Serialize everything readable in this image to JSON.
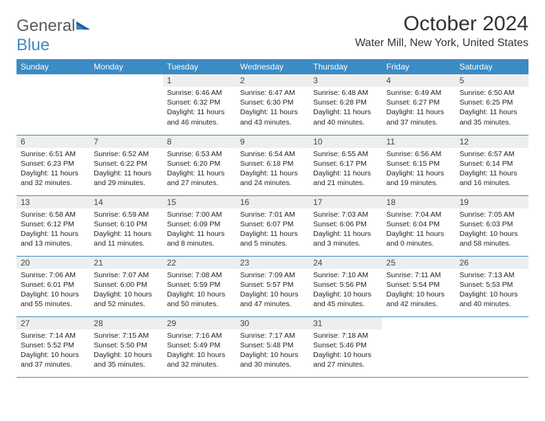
{
  "brand": {
    "general": "General",
    "blue": "Blue"
  },
  "title": "October 2024",
  "location": "Water Mill, New York, United States",
  "colors": {
    "header_bg": "#3b8bc4",
    "header_text": "#ffffff",
    "daynum_bg": "#eeeeee",
    "border": "#3b8bc4",
    "logo_gray": "#5a5a5a",
    "logo_blue": "#3b8bc4"
  },
  "day_names": [
    "Sunday",
    "Monday",
    "Tuesday",
    "Wednesday",
    "Thursday",
    "Friday",
    "Saturday"
  ],
  "weeks": [
    [
      null,
      null,
      {
        "n": "1",
        "sr": "Sunrise: 6:46 AM",
        "ss": "Sunset: 6:32 PM",
        "dl": "Daylight: 11 hours and 46 minutes."
      },
      {
        "n": "2",
        "sr": "Sunrise: 6:47 AM",
        "ss": "Sunset: 6:30 PM",
        "dl": "Daylight: 11 hours and 43 minutes."
      },
      {
        "n": "3",
        "sr": "Sunrise: 6:48 AM",
        "ss": "Sunset: 6:28 PM",
        "dl": "Daylight: 11 hours and 40 minutes."
      },
      {
        "n": "4",
        "sr": "Sunrise: 6:49 AM",
        "ss": "Sunset: 6:27 PM",
        "dl": "Daylight: 11 hours and 37 minutes."
      },
      {
        "n": "5",
        "sr": "Sunrise: 6:50 AM",
        "ss": "Sunset: 6:25 PM",
        "dl": "Daylight: 11 hours and 35 minutes."
      }
    ],
    [
      {
        "n": "6",
        "sr": "Sunrise: 6:51 AM",
        "ss": "Sunset: 6:23 PM",
        "dl": "Daylight: 11 hours and 32 minutes."
      },
      {
        "n": "7",
        "sr": "Sunrise: 6:52 AM",
        "ss": "Sunset: 6:22 PM",
        "dl": "Daylight: 11 hours and 29 minutes."
      },
      {
        "n": "8",
        "sr": "Sunrise: 6:53 AM",
        "ss": "Sunset: 6:20 PM",
        "dl": "Daylight: 11 hours and 27 minutes."
      },
      {
        "n": "9",
        "sr": "Sunrise: 6:54 AM",
        "ss": "Sunset: 6:18 PM",
        "dl": "Daylight: 11 hours and 24 minutes."
      },
      {
        "n": "10",
        "sr": "Sunrise: 6:55 AM",
        "ss": "Sunset: 6:17 PM",
        "dl": "Daylight: 11 hours and 21 minutes."
      },
      {
        "n": "11",
        "sr": "Sunrise: 6:56 AM",
        "ss": "Sunset: 6:15 PM",
        "dl": "Daylight: 11 hours and 19 minutes."
      },
      {
        "n": "12",
        "sr": "Sunrise: 6:57 AM",
        "ss": "Sunset: 6:14 PM",
        "dl": "Daylight: 11 hours and 16 minutes."
      }
    ],
    [
      {
        "n": "13",
        "sr": "Sunrise: 6:58 AM",
        "ss": "Sunset: 6:12 PM",
        "dl": "Daylight: 11 hours and 13 minutes."
      },
      {
        "n": "14",
        "sr": "Sunrise: 6:59 AM",
        "ss": "Sunset: 6:10 PM",
        "dl": "Daylight: 11 hours and 11 minutes."
      },
      {
        "n": "15",
        "sr": "Sunrise: 7:00 AM",
        "ss": "Sunset: 6:09 PM",
        "dl": "Daylight: 11 hours and 8 minutes."
      },
      {
        "n": "16",
        "sr": "Sunrise: 7:01 AM",
        "ss": "Sunset: 6:07 PM",
        "dl": "Daylight: 11 hours and 5 minutes."
      },
      {
        "n": "17",
        "sr": "Sunrise: 7:03 AM",
        "ss": "Sunset: 6:06 PM",
        "dl": "Daylight: 11 hours and 3 minutes."
      },
      {
        "n": "18",
        "sr": "Sunrise: 7:04 AM",
        "ss": "Sunset: 6:04 PM",
        "dl": "Daylight: 11 hours and 0 minutes."
      },
      {
        "n": "19",
        "sr": "Sunrise: 7:05 AM",
        "ss": "Sunset: 6:03 PM",
        "dl": "Daylight: 10 hours and 58 minutes."
      }
    ],
    [
      {
        "n": "20",
        "sr": "Sunrise: 7:06 AM",
        "ss": "Sunset: 6:01 PM",
        "dl": "Daylight: 10 hours and 55 minutes."
      },
      {
        "n": "21",
        "sr": "Sunrise: 7:07 AM",
        "ss": "Sunset: 6:00 PM",
        "dl": "Daylight: 10 hours and 52 minutes."
      },
      {
        "n": "22",
        "sr": "Sunrise: 7:08 AM",
        "ss": "Sunset: 5:59 PM",
        "dl": "Daylight: 10 hours and 50 minutes."
      },
      {
        "n": "23",
        "sr": "Sunrise: 7:09 AM",
        "ss": "Sunset: 5:57 PM",
        "dl": "Daylight: 10 hours and 47 minutes."
      },
      {
        "n": "24",
        "sr": "Sunrise: 7:10 AM",
        "ss": "Sunset: 5:56 PM",
        "dl": "Daylight: 10 hours and 45 minutes."
      },
      {
        "n": "25",
        "sr": "Sunrise: 7:11 AM",
        "ss": "Sunset: 5:54 PM",
        "dl": "Daylight: 10 hours and 42 minutes."
      },
      {
        "n": "26",
        "sr": "Sunrise: 7:13 AM",
        "ss": "Sunset: 5:53 PM",
        "dl": "Daylight: 10 hours and 40 minutes."
      }
    ],
    [
      {
        "n": "27",
        "sr": "Sunrise: 7:14 AM",
        "ss": "Sunset: 5:52 PM",
        "dl": "Daylight: 10 hours and 37 minutes."
      },
      {
        "n": "28",
        "sr": "Sunrise: 7:15 AM",
        "ss": "Sunset: 5:50 PM",
        "dl": "Daylight: 10 hours and 35 minutes."
      },
      {
        "n": "29",
        "sr": "Sunrise: 7:16 AM",
        "ss": "Sunset: 5:49 PM",
        "dl": "Daylight: 10 hours and 32 minutes."
      },
      {
        "n": "30",
        "sr": "Sunrise: 7:17 AM",
        "ss": "Sunset: 5:48 PM",
        "dl": "Daylight: 10 hours and 30 minutes."
      },
      {
        "n": "31",
        "sr": "Sunrise: 7:18 AM",
        "ss": "Sunset: 5:46 PM",
        "dl": "Daylight: 10 hours and 27 minutes."
      },
      null,
      null
    ]
  ]
}
